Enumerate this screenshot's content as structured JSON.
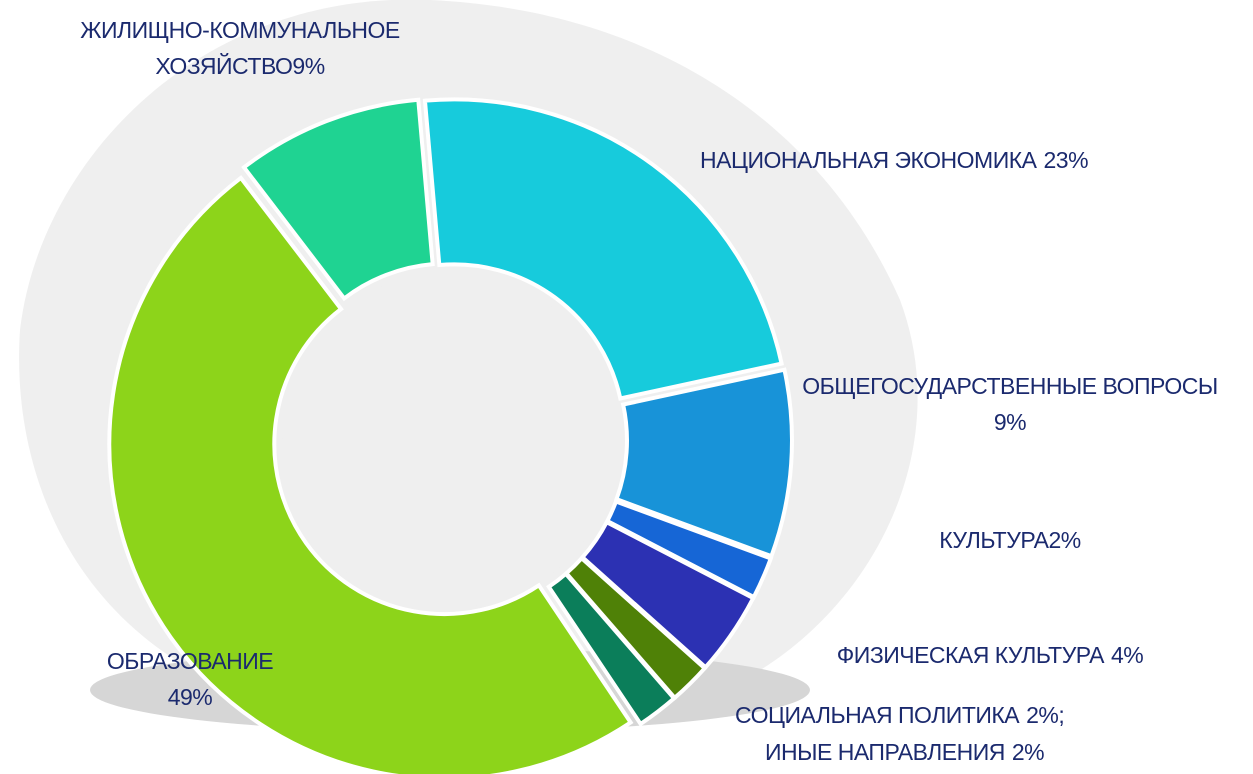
{
  "chart_data": {
    "type": "donut",
    "categories": [
      "НАЦИОНАЛЬНАЯ ЭКОНОМИКА",
      "ОБЩЕГОСУДАРСТВЕННЫЕ ВОПРОСЫ",
      "КУЛЬТУРА",
      "ФИЗИЧЕСКАЯ КУЛЬТУРА",
      "СОЦИАЛЬНАЯ ПОЛИТИКА",
      "ИНЫЕ НАПРАВЛЕНИЯ",
      "ОБРАЗОВАНИЕ",
      "ЖИЛИЩНО-КОММУНАЛЬНОЕ ХОЗЯЙСТВО"
    ],
    "values": [
      23,
      9,
      2,
      4,
      2,
      2,
      49,
      9
    ],
    "value_labels": [
      "23%",
      "9%",
      "2%",
      "4%",
      "2%;",
      "2%",
      "49%",
      "9%"
    ],
    "colors": [
      "#17cbdc",
      "#1893d8",
      "#1666d6",
      "#2c31b3",
      "#4f8107",
      "#0b7e5a",
      "#8dd41a",
      "#1fd392"
    ]
  }
}
